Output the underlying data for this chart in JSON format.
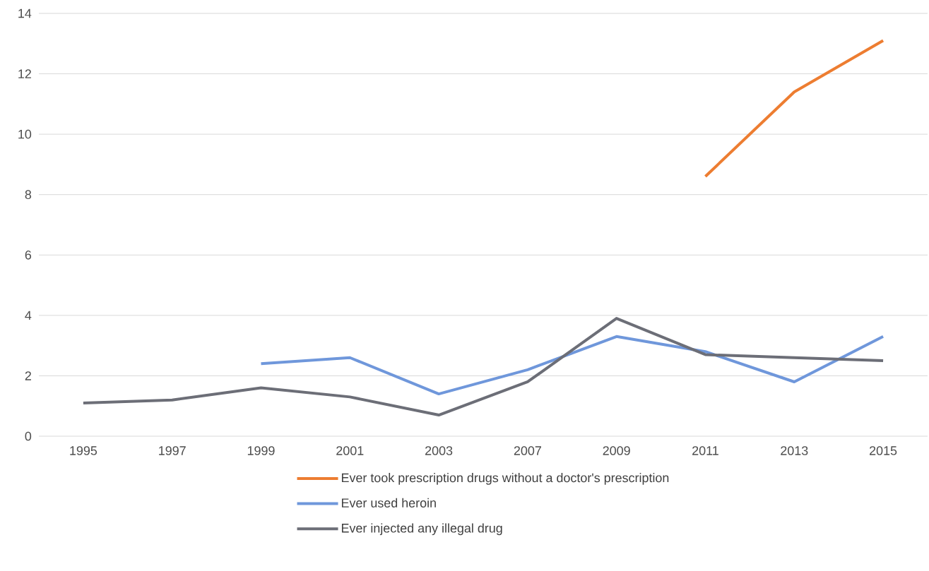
{
  "chart_data": {
    "type": "line",
    "categories": [
      "1995",
      "1997",
      "1999",
      "2001",
      "2003",
      "2007",
      "2009",
      "2011",
      "2013",
      "2015"
    ],
    "series": [
      {
        "name": "Ever took prescription drugs without a doctor's prescription",
        "color": "#ed7d31",
        "values": [
          null,
          null,
          null,
          null,
          null,
          null,
          null,
          8.6,
          11.4,
          13.1
        ]
      },
      {
        "name": "Ever used heroin",
        "color": "#6f97db",
        "values": [
          null,
          null,
          2.4,
          2.6,
          1.4,
          2.2,
          3.3,
          2.8,
          1.8,
          3.3
        ]
      },
      {
        "name": "Ever injected any illegal drug",
        "color": "#6c6e77",
        "values": [
          1.1,
          1.2,
          1.6,
          1.3,
          0.7,
          1.8,
          3.9,
          2.7,
          2.6,
          2.5
        ]
      }
    ],
    "ylim": [
      0,
      14
    ],
    "yticks": [
      0,
      2,
      4,
      6,
      8,
      10,
      12,
      14
    ],
    "grid": "y",
    "legend": "bottom",
    "marker": "none",
    "line_style": "solid"
  }
}
